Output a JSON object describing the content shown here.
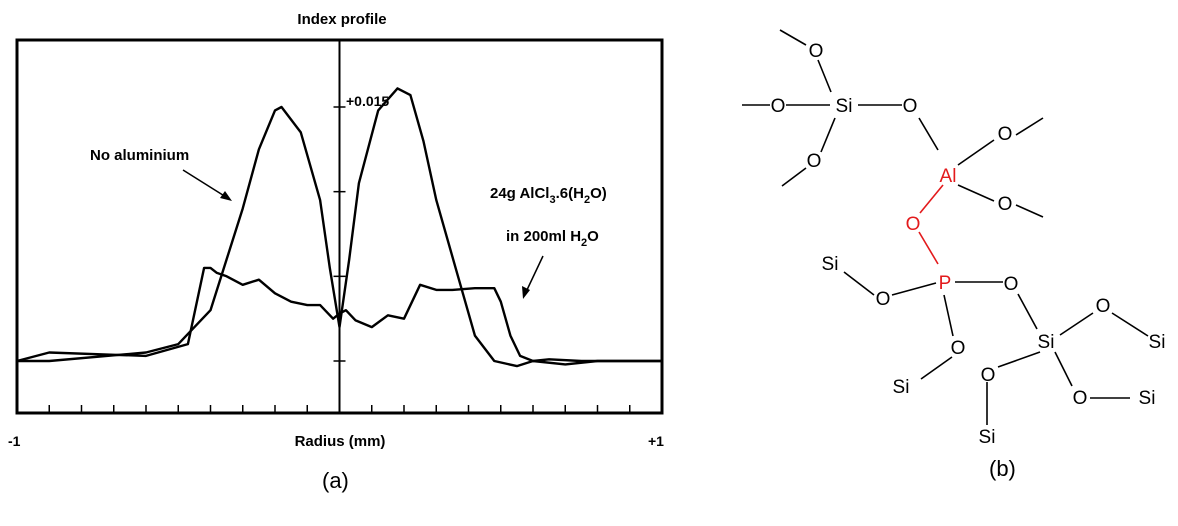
{
  "panels": {
    "a": {
      "label": "(a)"
    },
    "b": {
      "label": "(b)"
    }
  },
  "colors": {
    "ink": "#000000",
    "highlight": "#e31a1c"
  },
  "chart_data": {
    "type": "line",
    "title": "Index profile",
    "xlabel": "Radius (mm)",
    "xlim": [
      -1,
      1
    ],
    "x_tick_labels": {
      "left": "-1",
      "right": "+1"
    },
    "y_annotation": "+0.015",
    "grid": false,
    "series": [
      {
        "label": "No aluminium",
        "x": [
          -1.0,
          -0.9,
          -0.6,
          -0.5,
          -0.4,
          -0.35,
          -0.3,
          -0.25,
          -0.2,
          -0.18,
          -0.12,
          -0.06,
          -0.03,
          0.0,
          0.03,
          0.06,
          0.12,
          0.18,
          0.22,
          0.26,
          0.3,
          0.36,
          0.42,
          0.48,
          0.55,
          0.6,
          0.7,
          0.8,
          1.0
        ],
        "y": [
          0.0,
          0.0,
          0.0005,
          0.001,
          0.003,
          0.006,
          0.009,
          0.0125,
          0.0148,
          0.015,
          0.0135,
          0.0095,
          0.0055,
          0.002,
          0.006,
          0.0105,
          0.0148,
          0.0161,
          0.0157,
          0.013,
          0.0095,
          0.0055,
          0.0015,
          0.0,
          -0.0003,
          0.0,
          -0.0002,
          0.0,
          0.0
        ]
      },
      {
        "label": "24g AlCl3.6(H2O) in 200ml H2O",
        "x": [
          -1.0,
          -0.9,
          -0.6,
          -0.47,
          -0.42,
          -0.4,
          -0.38,
          -0.35,
          -0.3,
          -0.25,
          -0.2,
          -0.15,
          -0.1,
          -0.06,
          -0.02,
          0.0,
          0.02,
          0.05,
          0.1,
          0.15,
          0.2,
          0.25,
          0.3,
          0.35,
          0.42,
          0.48,
          0.5,
          0.53,
          0.56,
          0.6,
          0.65,
          0.75,
          0.9,
          1.0
        ],
        "y": [
          0.0,
          0.0005,
          0.0003,
          0.001,
          0.0055,
          0.0055,
          0.0052,
          0.005,
          0.0045,
          0.0048,
          0.004,
          0.0035,
          0.0033,
          0.0033,
          0.0025,
          0.0028,
          0.003,
          0.0024,
          0.002,
          0.0027,
          0.0025,
          0.0045,
          0.0042,
          0.0042,
          0.0043,
          0.0043,
          0.0035,
          0.0015,
          0.0003,
          0.0,
          0.0001,
          0.0,
          0.0,
          0.0
        ]
      }
    ],
    "annotations": [
      {
        "id": "no-al",
        "text": "No aluminium"
      },
      {
        "id": "alcl3",
        "line1": {
          "a": "24g AlCl",
          "b": "3",
          "c": ".6(H",
          "d": "2",
          "e": "O)"
        },
        "line2": {
          "a": "in 200ml H",
          "b": "2",
          "c": "O"
        }
      }
    ]
  },
  "molecule": {
    "atoms": {
      "si_top": "Si",
      "al": "Al",
      "p": "P",
      "si_mid": "Si",
      "o": "O",
      "si_left": "Si",
      "si_lower_left": "Si",
      "si_right_top": "Si",
      "si_right_bottom": "Si",
      "si_bottom": "Si"
    },
    "highlight_atoms": [
      "Al",
      "P",
      "bridging O"
    ]
  }
}
